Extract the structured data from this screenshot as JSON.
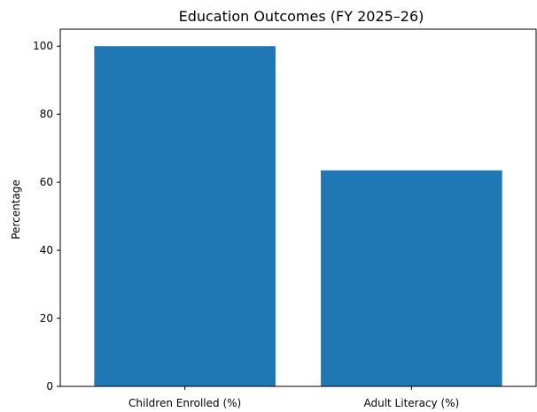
{
  "chart_data": {
    "type": "bar",
    "title": "Education Outcomes (FY 2025–26)",
    "xlabel": "",
    "ylabel": "Percentage",
    "categories": [
      "Children Enrolled (%)",
      "Adult Literacy (%)"
    ],
    "values": [
      100,
      63.5
    ],
    "ylim": [
      0,
      105
    ],
    "yticks": [
      0,
      20,
      40,
      60,
      80,
      100
    ],
    "bar_color": "#1f77b4",
    "grid": false,
    "legend": "none"
  }
}
